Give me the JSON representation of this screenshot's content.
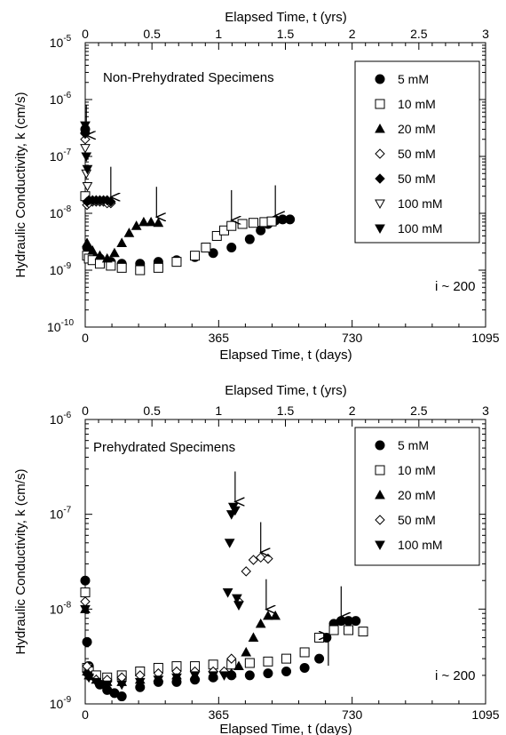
{
  "chart_data": [
    {
      "type": "scatter",
      "panel_label": "Non-Prehydrated Specimens",
      "annotation": "i ~ 200",
      "xlabel": "Elapsed Time, t (days)",
      "x2label": "Elapsed Time, t (yrs)",
      "ylabel": "Hydraulic Conductivity, k (cm/s)",
      "xlim": [
        0,
        1095
      ],
      "x2lim": [
        0,
        3
      ],
      "ylim": [
        1e-10,
        1e-05
      ],
      "y_scale": "log",
      "xticks": [
        "0",
        "365",
        "730",
        "1095"
      ],
      "x2ticks": [
        "0",
        "0.5",
        "1",
        "1.5",
        "2",
        "2.5",
        "3"
      ],
      "yticks": [
        {
          "base": "10",
          "exp": "-10",
          "value": 1e-10
        },
        {
          "base": "10",
          "exp": "-9",
          "value": 1e-09
        },
        {
          "base": "10",
          "exp": "-8",
          "value": 1e-08
        },
        {
          "base": "10",
          "exp": "-7",
          "value": 1e-07
        },
        {
          "base": "10",
          "exp": "-6",
          "value": 1e-06
        },
        {
          "base": "10",
          "exp": "-5",
          "value": 1e-05
        }
      ],
      "legend_position": "top-right",
      "series": [
        {
          "name": "5 mM",
          "marker": "circle-filled",
          "x": [
            0,
            5,
            10,
            20,
            40,
            70,
            100,
            150,
            200,
            250,
            300,
            350,
            400,
            450,
            480,
            500,
            520,
            540,
            560
          ],
          "y": [
            3e-07,
            2.5e-09,
            2.2e-09,
            1.8e-09,
            1.6e-09,
            1.4e-09,
            1.3e-09,
            1.3e-09,
            1.4e-09,
            1.5e-09,
            1.7e-09,
            2e-09,
            2.5e-09,
            3.5e-09,
            5e-09,
            6.5e-09,
            7.5e-09,
            7.8e-09,
            7.8e-09
          ]
        },
        {
          "name": "10 mM",
          "marker": "square-open",
          "x": [
            0,
            5,
            10,
            20,
            40,
            70,
            100,
            150,
            200,
            250,
            300,
            330,
            360,
            380,
            400,
            430,
            460,
            490,
            510
          ],
          "y": [
            2e-08,
            1.8e-09,
            1.6e-09,
            1.5e-09,
            1.3e-09,
            1.2e-09,
            1.1e-09,
            1e-09,
            1.1e-09,
            1.4e-09,
            1.8e-09,
            2.5e-09,
            4e-09,
            5e-09,
            6e-09,
            6.5e-09,
            6.8e-09,
            7e-09,
            7.2e-09
          ]
        },
        {
          "name": "20 mM",
          "marker": "triangle-filled",
          "x": [
            0,
            5,
            10,
            20,
            40,
            60,
            80,
            100,
            120,
            140,
            160,
            180,
            200
          ],
          "y": [
            3e-07,
            3e-09,
            2.6e-09,
            2.2e-09,
            1.8e-09,
            1.6e-09,
            2e-09,
            3e-09,
            4.5e-09,
            6e-09,
            7e-09,
            7e-09,
            6.8e-09
          ]
        },
        {
          "name": "50 mM",
          "marker": "diamond-open",
          "x": [
            0,
            5,
            10,
            20,
            30,
            40,
            50,
            60,
            70
          ],
          "y": [
            2e-07,
            1.4e-08,
            1.5e-08,
            1.6e-08,
            1.6e-08,
            1.6e-08,
            1.6e-08,
            1.5e-08,
            1.5e-08
          ]
        },
        {
          "name": "50 mM",
          "marker": "diamond-filled",
          "x": [
            0,
            5,
            10,
            20,
            30,
            40,
            50,
            60,
            70
          ],
          "y": [
            2.5e-07,
            1.6e-08,
            1.7e-08,
            1.7e-08,
            1.7e-08,
            1.7e-08,
            1.7e-08,
            1.7e-08,
            1.6e-08
          ]
        },
        {
          "name": "100 mM",
          "marker": "triangle-down-open",
          "x": [
            0,
            3,
            6
          ],
          "y": [
            1.4e-07,
            5e-08,
            3e-08
          ]
        },
        {
          "name": "100 mM",
          "marker": "triangle-down-filled",
          "x": [
            0,
            3,
            6
          ],
          "y": [
            3.5e-07,
            1e-07,
            6e-08
          ]
        }
      ],
      "arrows": [
        {
          "x": 3,
          "y": 2.2e-07
        },
        {
          "x": 70,
          "y": 1.8e-08
        },
        {
          "x": 195,
          "y": 8e-09
        },
        {
          "x": 400,
          "y": 7e-09
        },
        {
          "x": 520,
          "y": 8.5e-09
        }
      ]
    },
    {
      "type": "scatter",
      "panel_label": "Prehydrated Specimens",
      "annotation": "i ~ 200",
      "xlabel": "Elapsed Time, t (days)",
      "x2label": "Elapsed Time, t (yrs)",
      "ylabel": "Hydraulic Conductivity, k (cm/s)",
      "xlim": [
        0,
        1095
      ],
      "x2lim": [
        0,
        3
      ],
      "ylim": [
        1e-09,
        1e-06
      ],
      "y_scale": "log",
      "xticks": [
        "0",
        "365",
        "730",
        "1095"
      ],
      "x2ticks": [
        "0",
        "0.5",
        "1",
        "1.5",
        "2",
        "2.5",
        "3"
      ],
      "yticks": [
        {
          "base": "10",
          "exp": "-9",
          "value": 1e-09
        },
        {
          "base": "10",
          "exp": "-8",
          "value": 1e-08
        },
        {
          "base": "10",
          "exp": "-7",
          "value": 1e-07
        },
        {
          "base": "10",
          "exp": "-6",
          "value": 1e-06
        }
      ],
      "legend_position": "top-right",
      "series": [
        {
          "name": "5 mM",
          "marker": "circle-filled",
          "x": [
            0,
            5,
            10,
            20,
            40,
            60,
            80,
            100,
            150,
            200,
            250,
            300,
            350,
            400,
            450,
            500,
            550,
            600,
            640,
            660,
            680,
            700,
            720,
            740
          ],
          "y": [
            2e-08,
            4.5e-09,
            2.5e-09,
            2e-09,
            1.6e-09,
            1.4e-09,
            1.3e-09,
            1.2e-09,
            1.5e-09,
            1.7e-09,
            1.7e-09,
            1.8e-09,
            1.9e-09,
            2e-09,
            2e-09,
            2.1e-09,
            2.2e-09,
            2.4e-09,
            3e-09,
            5e-09,
            7e-09,
            7.5e-09,
            7.5e-09,
            7.5e-09
          ]
        },
        {
          "name": "10 mM",
          "marker": "square-open",
          "x": [
            0,
            5,
            10,
            30,
            60,
            100,
            150,
            200,
            250,
            300,
            350,
            400,
            450,
            500,
            550,
            600,
            640,
            680,
            720,
            760
          ],
          "y": [
            1.5e-08,
            2.4e-09,
            2.2e-09,
            2e-09,
            1.9e-09,
            2e-09,
            2.2e-09,
            2.4e-09,
            2.5e-09,
            2.5e-09,
            2.6e-09,
            2.6e-09,
            2.7e-09,
            2.8e-09,
            3e-09,
            3.5e-09,
            5e-09,
            6e-09,
            6e-09,
            5.8e-09
          ]
        },
        {
          "name": "20 mM",
          "marker": "triangle-filled",
          "x": [
            0,
            5,
            10,
            30,
            60,
            100,
            150,
            200,
            250,
            300,
            350,
            400,
            420,
            440,
            460,
            480,
            500,
            520
          ],
          "y": [
            1e-08,
            2.2e-09,
            2e-09,
            1.8e-09,
            1.7e-09,
            1.7e-09,
            1.8e-09,
            1.9e-09,
            2e-09,
            2e-09,
            2e-09,
            2.1e-09,
            2.5e-09,
            3.5e-09,
            5e-09,
            7e-09,
            8.5e-09,
            8.5e-09
          ]
        },
        {
          "name": "50 mM",
          "marker": "diamond-open",
          "x": [
            0,
            5,
            10,
            30,
            60,
            100,
            150,
            200,
            250,
            300,
            350,
            380,
            400,
            420,
            440,
            460,
            480,
            500
          ],
          "y": [
            1.2e-08,
            2.5e-09,
            2e-09,
            1.8e-09,
            1.8e-09,
            1.9e-09,
            2e-09,
            2.1e-09,
            2.2e-09,
            2.2e-09,
            2.2e-09,
            2.2e-09,
            3e-09,
            1.2e-08,
            2.5e-08,
            3.3e-08,
            3.5e-08,
            3.4e-08
          ]
        },
        {
          "name": "100 mM",
          "marker": "triangle-down-filled",
          "x": [
            0,
            5,
            10,
            30,
            60,
            100,
            150,
            200,
            250,
            300,
            350,
            380,
            390,
            395,
            400,
            405,
            410,
            415,
            420
          ],
          "y": [
            1e-08,
            2e-09,
            1.9e-09,
            1.7e-09,
            1.6e-09,
            1.6e-09,
            1.7e-09,
            1.8e-09,
            1.9e-09,
            2e-09,
            2e-09,
            2e-09,
            1.5e-08,
            5e-08,
            1e-07,
            1.2e-07,
            1.1e-07,
            1.3e-08,
            1.1e-08
          ]
        }
      ],
      "arrows": [
        {
          "x": 410,
          "y": 1.3e-07,
          "dir": "down"
        },
        {
          "x": 480,
          "y": 3.8e-08,
          "dir": "down"
        },
        {
          "x": 495,
          "y": 9.5e-09,
          "dir": "down"
        },
        {
          "x": 700,
          "y": 8e-09,
          "dir": "down"
        },
        {
          "x": 665,
          "y": 5.5e-09,
          "dir": "up"
        }
      ]
    }
  ]
}
